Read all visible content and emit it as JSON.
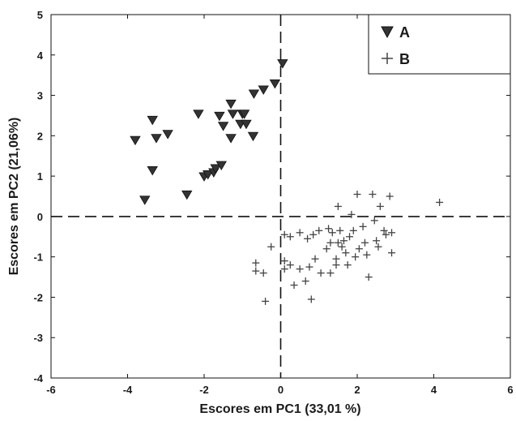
{
  "chart_data": {
    "type": "scatter",
    "xlabel": "Escores em PC1 (33,01 %)",
    "ylabel": "Escores em PC2 (21,06%)",
    "xlim": [
      -6,
      6
    ],
    "ylim": [
      -4,
      5
    ],
    "xticks": [
      "-6",
      "-4",
      "-2",
      "0",
      "2",
      "4",
      "6"
    ],
    "yticks": [
      "-4",
      "-3",
      "-2",
      "-1",
      "0",
      "1",
      "2",
      "3",
      "4",
      "5"
    ],
    "grid": false,
    "reference_lines": {
      "x": 0,
      "y": 0,
      "style": "dashed"
    },
    "legend_position": "top-right",
    "series": [
      {
        "name": "A",
        "marker": "triangle-down",
        "color": "#333333",
        "points": [
          [
            -3.8,
            1.9
          ],
          [
            -3.55,
            0.42
          ],
          [
            -3.35,
            2.4
          ],
          [
            -3.35,
            1.15
          ],
          [
            -3.25,
            1.95
          ],
          [
            -2.95,
            2.05
          ],
          [
            -2.45,
            0.55
          ],
          [
            -2.15,
            2.55
          ],
          [
            -2.0,
            1.0
          ],
          [
            -1.9,
            1.05
          ],
          [
            -1.75,
            1.1
          ],
          [
            -1.7,
            1.2
          ],
          [
            -1.6,
            2.5
          ],
          [
            -1.55,
            1.28
          ],
          [
            -1.5,
            2.25
          ],
          [
            -1.3,
            2.8
          ],
          [
            -1.3,
            1.95
          ],
          [
            -1.25,
            2.55
          ],
          [
            -1.05,
            2.3
          ],
          [
            -1.0,
            2.55
          ],
          [
            -0.95,
            2.55
          ],
          [
            -0.9,
            2.3
          ],
          [
            -0.72,
            2.0
          ],
          [
            -0.7,
            3.05
          ],
          [
            -0.45,
            3.15
          ],
          [
            -0.15,
            3.3
          ],
          [
            0.05,
            3.8
          ]
        ]
      },
      {
        "name": "B",
        "marker": "plus",
        "color": "#444444",
        "points": [
          [
            -0.65,
            -1.15
          ],
          [
            -0.65,
            -1.35
          ],
          [
            -0.45,
            -1.4
          ],
          [
            -0.4,
            -2.1
          ],
          [
            -0.25,
            -0.75
          ],
          [
            0.1,
            -0.45
          ],
          [
            0.1,
            -1.1
          ],
          [
            0.1,
            -1.3
          ],
          [
            0.25,
            -1.2
          ],
          [
            0.25,
            -0.5
          ],
          [
            0.35,
            -1.7
          ],
          [
            0.5,
            -0.4
          ],
          [
            0.5,
            -1.3
          ],
          [
            0.65,
            -1.6
          ],
          [
            0.7,
            -0.55
          ],
          [
            0.75,
            -1.25
          ],
          [
            0.8,
            -2.05
          ],
          [
            0.85,
            -0.45
          ],
          [
            0.9,
            -1.05
          ],
          [
            1.0,
            -0.35
          ],
          [
            1.05,
            -1.4
          ],
          [
            1.2,
            -0.8
          ],
          [
            1.25,
            -0.3
          ],
          [
            1.3,
            -0.65
          ],
          [
            1.3,
            -1.4
          ],
          [
            1.35,
            -0.4
          ],
          [
            1.45,
            -1.05
          ],
          [
            1.45,
            -1.2
          ],
          [
            1.5,
            -0.65
          ],
          [
            1.5,
            0.25
          ],
          [
            1.55,
            -0.35
          ],
          [
            1.6,
            -0.75
          ],
          [
            1.65,
            -0.6
          ],
          [
            1.7,
            -0.9
          ],
          [
            1.75,
            -1.2
          ],
          [
            1.8,
            -0.5
          ],
          [
            1.85,
            0.05
          ],
          [
            1.9,
            -0.35
          ],
          [
            1.95,
            -1.0
          ],
          [
            2.0,
            0.55
          ],
          [
            2.05,
            -0.8
          ],
          [
            2.15,
            -0.25
          ],
          [
            2.2,
            -0.65
          ],
          [
            2.25,
            -0.95
          ],
          [
            2.3,
            -1.5
          ],
          [
            2.4,
            0.55
          ],
          [
            2.45,
            -0.1
          ],
          [
            2.5,
            -0.6
          ],
          [
            2.55,
            -0.75
          ],
          [
            2.6,
            0.25
          ],
          [
            2.7,
            -0.35
          ],
          [
            2.75,
            -0.45
          ],
          [
            2.85,
            0.5
          ],
          [
            2.9,
            -0.9
          ],
          [
            2.9,
            -0.4
          ],
          [
            4.15,
            0.35
          ]
        ]
      }
    ]
  }
}
